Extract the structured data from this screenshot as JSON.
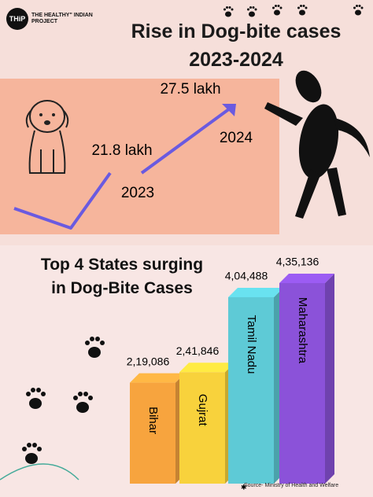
{
  "brand": {
    "logo": "THiP",
    "name": "THE HEALTHY\" INDIAN PROJECT"
  },
  "chart_data": [
    {
      "type": "line",
      "title": "Rise in Dog-bite cases 2023-2024",
      "categories": [
        "2023",
        "2024"
      ],
      "values": [
        21.8,
        27.5
      ],
      "value_labels": [
        "21.8 lakh",
        "27.5 lakh"
      ],
      "color": "#6a5ae0"
    },
    {
      "type": "bar",
      "title": "Top 4 States surging in Dog-Bite Cases",
      "categories": [
        "Bihar",
        "Gujrat",
        "Tamil Nadu",
        "Maharashtra"
      ],
      "values": [
        219086,
        241846,
        404488,
        435136
      ],
      "value_labels": [
        "2,19,086",
        "2,41,846",
        "4,04,488",
        "4,35,136"
      ],
      "colors": [
        "#f7a43e",
        "#f8d23c",
        "#5ecad6",
        "#8b52d9"
      ]
    }
  ],
  "source": "Source- Ministry of Health and Welfare"
}
